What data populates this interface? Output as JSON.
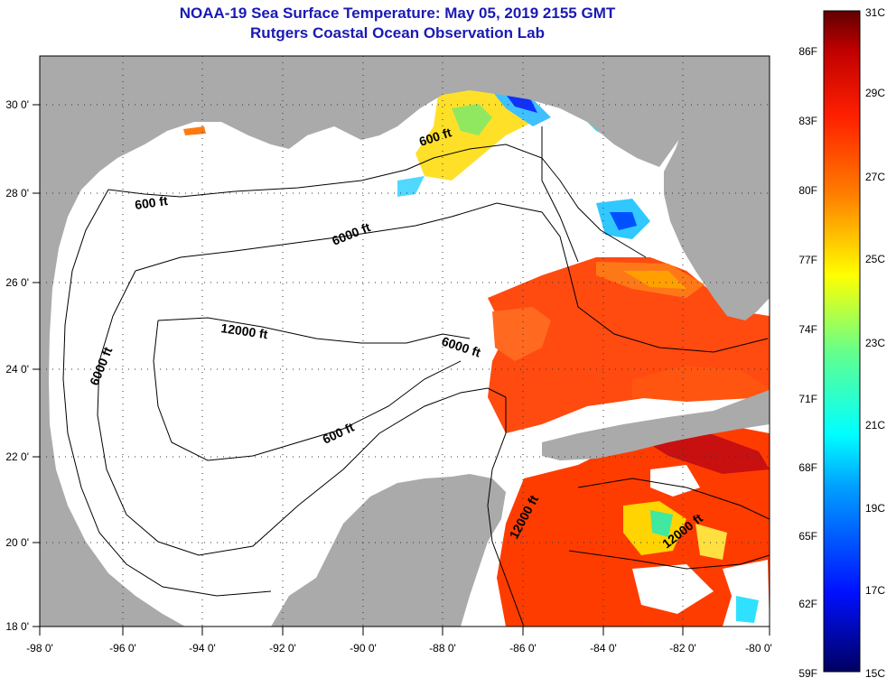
{
  "title": {
    "line1": "NOAA-19 Sea Surface Temperature:  May 05, 2019 2155 GMT",
    "line2": "Rutgers Coastal Ocean Observation Lab"
  },
  "axes": {
    "x_ticks": [
      "-98 0'",
      "-96 0'",
      "-94 0'",
      "-92 0'",
      "-90 0'",
      "-88 0'",
      "-86 0'",
      "-84 0'",
      "-82 0'",
      "-80 0'"
    ],
    "y_ticks": [
      "30 0'",
      "28 0'",
      "26 0'",
      "24 0'",
      "22 0'",
      "20 0'",
      "18 0'"
    ]
  },
  "contour_labels": [
    "600 ft",
    "600 ft",
    "600 ft",
    "6000 ft",
    "6000 ft",
    "6000 ft",
    "12000 ft",
    "12000 ft",
    "12000 ft"
  ],
  "colorbar": {
    "fahrenheit": [
      "86F",
      "83F",
      "80F",
      "77F",
      "74F",
      "71F",
      "68F",
      "65F",
      "62F",
      "59F"
    ],
    "celsius": [
      "31C",
      "29C",
      "27C",
      "25C",
      "23C",
      "21C",
      "19C",
      "17C",
      "15C"
    ]
  },
  "colors": {
    "title": "#1a1ab4",
    "land": "#aaaaaa",
    "ocean_no_data": "#ffffff",
    "warm_sst": "#ff3c00",
    "cool_sst": "#ffd400"
  }
}
